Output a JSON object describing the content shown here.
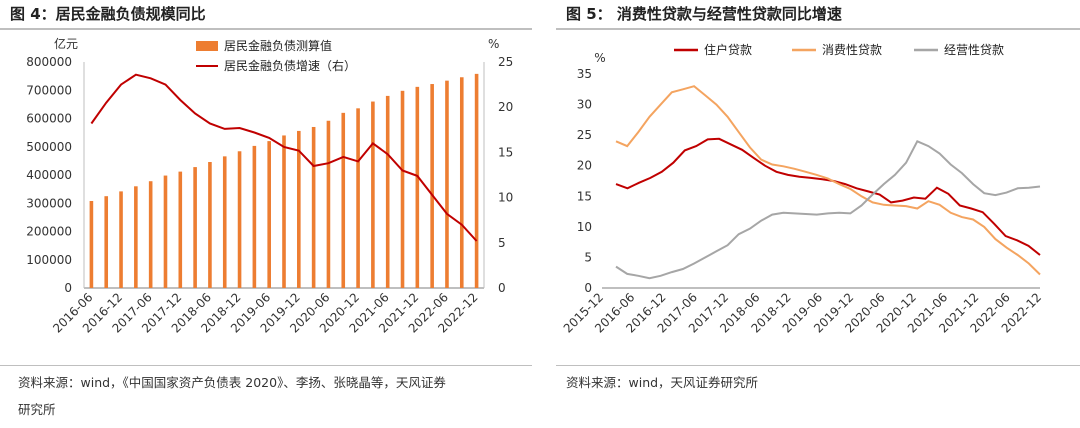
{
  "left": {
    "title": "图 4：居民金融负债规模同比",
    "source_line1": "资料来源：wind，《中国国家资产负债表 2020》、李扬、张晓晶等，天风证券",
    "source_line2": "研究所"
  },
  "right": {
    "title": "图 5： 消费性贷款与经营性贷款同比增速",
    "source_line1": "资料来源：wind，天风证券研究所"
  },
  "chart_data": [
    {
      "type": "bar",
      "combo": "bar+line",
      "y_left_unit": "亿元",
      "y_right_unit": "%",
      "ylim_left": [
        0,
        800000
      ],
      "ylim_right": [
        0,
        25
      ],
      "yticks_left": [
        "0",
        "100000",
        "200000",
        "300000",
        "400000",
        "500000",
        "600000",
        "700000",
        "800000"
      ],
      "yticks_right": [
        "0",
        "5",
        "10",
        "15",
        "20",
        "25"
      ],
      "x_tick_labels": [
        "2016-06",
        "2016-12",
        "2017-06",
        "2017-12",
        "2018-06",
        "2018-12",
        "2019-06",
        "2019-12",
        "2020-06",
        "2020-12",
        "2021-06",
        "2021-12",
        "2022-06",
        "2022-12"
      ],
      "legend_placement": "top-center",
      "series": [
        {
          "name": "居民金融负债测算值",
          "kind": "bar",
          "axis": "left",
          "color": "#ed7d31",
          "values": [
            308000,
            325000,
            342000,
            360000,
            378000,
            398000,
            412000,
            428000,
            446000,
            466000,
            484000,
            503000,
            520000,
            540000,
            556000,
            570000,
            592000,
            620000,
            636000,
            660000,
            680000,
            698000,
            712000,
            722000,
            734000,
            746000,
            758000
          ]
        },
        {
          "name": "居民金融负债增速（右）",
          "kind": "line",
          "axis": "right",
          "color": "#c00000",
          "values": [
            18.2,
            20.5,
            22.5,
            23.6,
            23.2,
            22.5,
            20.8,
            19.3,
            18.2,
            17.6,
            17.7,
            17.2,
            16.6,
            15.6,
            15.2,
            13.5,
            13.8,
            14.5,
            14.0,
            16.0,
            14.8,
            13.0,
            12.4,
            10.3,
            8.2,
            7.0,
            5.2
          ]
        }
      ]
    },
    {
      "type": "line",
      "y_unit": "%",
      "ylim": [
        0,
        35
      ],
      "yticks": [
        "0",
        "5",
        "10",
        "15",
        "20",
        "25",
        "30",
        "35"
      ],
      "x_tick_labels": [
        "2015-12",
        "2016-06",
        "2016-12",
        "2017-06",
        "2017-12",
        "2018-06",
        "2018-12",
        "2019-06",
        "2019-12",
        "2020-06",
        "2020-12",
        "2021-06",
        "2021-12",
        "2022-06",
        "2022-12"
      ],
      "legend_placement": "top",
      "series": [
        {
          "name": "住户贷款",
          "color": "#c00000",
          "values": [
            17.0,
            16.3,
            17.2,
            18.0,
            19.0,
            20.5,
            22.5,
            23.2,
            24.3,
            24.4,
            23.5,
            22.6,
            21.3,
            20.0,
            19.0,
            18.5,
            18.2,
            18.0,
            17.8,
            17.5,
            17.0,
            16.3,
            15.8,
            15.3,
            14.0,
            14.3,
            14.8,
            14.6,
            16.4,
            15.4,
            13.5,
            13.0,
            12.4,
            10.5,
            8.5,
            7.8,
            6.9,
            5.4
          ]
        },
        {
          "name": "消费性贷款",
          "color": "#f4a460",
          "values": [
            24.0,
            23.2,
            25.5,
            28.0,
            30.0,
            32.0,
            32.5,
            33.0,
            31.5,
            30.0,
            28.0,
            25.5,
            23.0,
            21.0,
            20.2,
            19.9,
            19.5,
            19.0,
            18.5,
            17.9,
            17.0,
            16.2,
            15.0,
            14.0,
            13.6,
            13.5,
            13.4,
            13.0,
            14.2,
            13.6,
            12.3,
            11.6,
            11.2,
            10.0,
            8.0,
            6.6,
            5.4,
            4.0,
            2.2
          ]
        },
        {
          "name": "经营性贷款",
          "color": "#a6a6a6",
          "values": [
            3.5,
            2.3,
            2.0,
            1.6,
            2.0,
            2.6,
            3.1,
            4.0,
            5.0,
            6.0,
            7.0,
            8.8,
            9.7,
            11.0,
            12.0,
            12.3,
            12.2,
            12.1,
            12.0,
            12.2,
            12.3,
            12.2,
            13.5,
            15.3,
            17.0,
            18.5,
            20.5,
            24.0,
            23.2,
            22.0,
            20.2,
            18.8,
            17.0,
            15.5,
            15.2,
            15.6,
            16.3,
            16.4,
            16.6
          ]
        }
      ]
    }
  ]
}
